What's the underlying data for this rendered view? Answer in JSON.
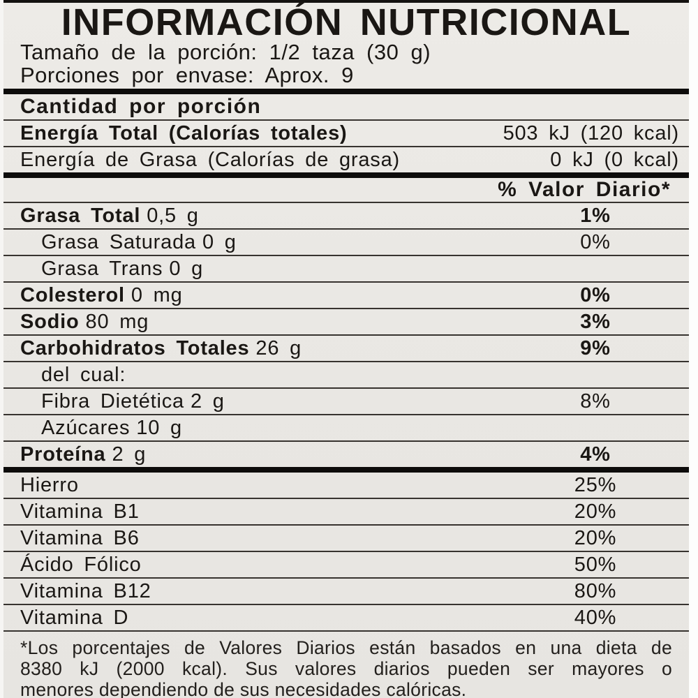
{
  "label": {
    "title": "INFORMACIÓN NUTRICIONAL",
    "serving_lines": [
      "Tamaño de la porción: 1/2 taza (30 g)",
      "Porciones por envase: Aprox. 9"
    ],
    "amount_header": "Cantidad por porción",
    "energy_rows": [
      {
        "name": "Energía Total (Calorías totales)",
        "value": "503 kJ (120 kcal)",
        "bold": true
      },
      {
        "name": "Energía de Grasa (Calorías de grasa)",
        "value": "0 kJ (0 kcal)",
        "bold": false
      }
    ],
    "dv_header": "% Valor Diario*",
    "nutrient_rows": [
      {
        "name": "Grasa Total",
        "amount": "0,5 g",
        "dv": "1%",
        "bold": true,
        "indent": false
      },
      {
        "name": "Grasa Saturada",
        "amount": "0 g",
        "dv": "0%",
        "bold": false,
        "indent": true
      },
      {
        "name": "Grasa Trans",
        "amount": "0 g",
        "dv": "",
        "bold": false,
        "indent": true
      },
      {
        "name": "Colesterol",
        "amount": "0 mg",
        "dv": "0%",
        "bold": true,
        "indent": false
      },
      {
        "name": "Sodio",
        "amount": "80 mg",
        "dv": "3%",
        "bold": true,
        "indent": false
      },
      {
        "name": "Carbohidratos Totales",
        "amount": "26 g",
        "dv": "9%",
        "bold": true,
        "indent": false
      },
      {
        "name": "del cual:",
        "amount": "",
        "dv": "",
        "bold": false,
        "indent": true
      },
      {
        "name": "Fibra Dietética",
        "amount": "2 g",
        "dv": "8%",
        "bold": false,
        "indent": true
      },
      {
        "name": "Azúcares",
        "amount": "10 g",
        "dv": "",
        "bold": false,
        "indent": true
      },
      {
        "name": "Proteína",
        "amount": "2 g",
        "dv": "4%",
        "bold": true,
        "indent": false
      }
    ],
    "vitamin_rows": [
      {
        "name": "Hierro",
        "dv": "25%"
      },
      {
        "name": "Vitamina B1",
        "dv": "20%"
      },
      {
        "name": "Vitamina B6",
        "dv": "20%"
      },
      {
        "name": "Ácido Fólico",
        "dv": "50%"
      },
      {
        "name": "Vitamina B12",
        "dv": "80%"
      },
      {
        "name": "Vitamina D",
        "dv": "40%"
      }
    ],
    "footnote_lines": [
      "*Los porcentajes de Valores Diarios están basados en una dieta de",
      "8380 kJ (2000 kcal). Sus valores diarios pueden ser mayores o",
      "menores dependiendo de sus necesidades calóricas."
    ],
    "colors": {
      "background": "#e9e7e3",
      "text": "#1a1714",
      "thin_rule": "#37332f",
      "thick_bar": "#0d0c0b",
      "edge": "#fbfbfa"
    }
  }
}
